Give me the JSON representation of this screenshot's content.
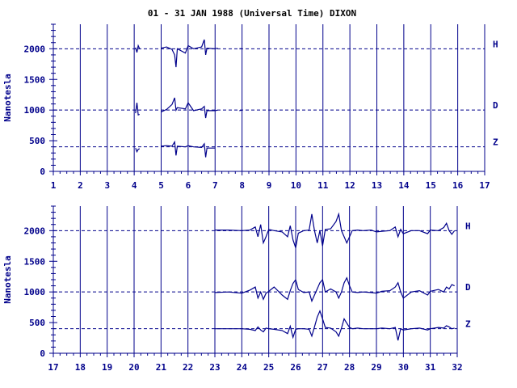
{
  "colors": {
    "ink": "#00008b",
    "trace": "#00008b",
    "background": "#ffffff"
  },
  "title": "01 - 31 JAN 1988 (Universal Time) DIXON",
  "chart_data": [
    {
      "type": "line",
      "ylabel": "Nanotesla",
      "xlim": [
        1,
        17
      ],
      "ylim": [
        0,
        2400
      ],
      "x_ticks": [
        "1",
        "2",
        "3",
        "4",
        "5",
        "6",
        "7",
        "8",
        "9",
        "10",
        "11",
        "12",
        "13",
        "14",
        "15",
        "16",
        "17"
      ],
      "y_ticks": [
        "0",
        "500",
        "1000",
        "1500",
        "2000"
      ],
      "baselines": [
        {
          "name": "H",
          "value": 2000
        },
        {
          "name": "D",
          "value": 1000
        },
        {
          "name": "Z",
          "value": 400
        }
      ],
      "series": [
        {
          "name": "H",
          "points": [
            [
              4.05,
              2020
            ],
            [
              4.1,
              1940
            ],
            [
              4.15,
              2050
            ],
            [
              4.2,
              2000
            ],
            [
              5.0,
              2010
            ],
            [
              5.2,
              2030
            ],
            [
              5.4,
              1990
            ],
            [
              5.5,
              1900
            ],
            [
              5.55,
              1700
            ],
            [
              5.6,
              2000
            ],
            [
              5.9,
              1930
            ],
            [
              6.0,
              2050
            ],
            [
              6.2,
              2000
            ],
            [
              6.5,
              2030
            ],
            [
              6.6,
              2150
            ],
            [
              6.65,
              1900
            ],
            [
              6.7,
              2010
            ],
            [
              7.0,
              2000
            ],
            [
              7.1,
              2010
            ],
            [
              7.9,
              2000
            ],
            [
              8.0,
              2000
            ]
          ]
        },
        {
          "name": "D",
          "points": [
            [
              4.05,
              950
            ],
            [
              4.1,
              1120
            ],
            [
              4.15,
              920
            ],
            [
              4.2,
              930
            ],
            [
              5.0,
              970
            ],
            [
              5.2,
              1010
            ],
            [
              5.4,
              1090
            ],
            [
              5.5,
              1200
            ],
            [
              5.55,
              1000
            ],
            [
              5.6,
              1040
            ],
            [
              5.9,
              1020
            ],
            [
              6.0,
              1120
            ],
            [
              6.2,
              990
            ],
            [
              6.5,
              1020
            ],
            [
              6.6,
              1060
            ],
            [
              6.65,
              870
            ],
            [
              6.7,
              990
            ],
            [
              7.0,
              990
            ],
            [
              7.1,
              1000
            ],
            [
              7.9,
              990
            ],
            [
              8.0,
              1000
            ]
          ]
        },
        {
          "name": "Z",
          "points": [
            [
              4.05,
              380
            ],
            [
              4.1,
              320
            ],
            [
              4.15,
              360
            ],
            [
              4.2,
              370
            ],
            [
              5.0,
              410
            ],
            [
              5.2,
              420
            ],
            [
              5.4,
              410
            ],
            [
              5.5,
              480
            ],
            [
              5.55,
              260
            ],
            [
              5.6,
              410
            ],
            [
              5.9,
              400
            ],
            [
              6.0,
              420
            ],
            [
              6.2,
              400
            ],
            [
              6.5,
              390
            ],
            [
              6.6,
              450
            ],
            [
              6.65,
              230
            ],
            [
              6.7,
              380
            ],
            [
              7.0,
              380
            ]
          ]
        }
      ]
    },
    {
      "type": "line",
      "ylabel": "Nanotesla",
      "xlim": [
        17,
        32
      ],
      "ylim": [
        0,
        2400
      ],
      "x_ticks": [
        "17",
        "18",
        "19",
        "20",
        "21",
        "22",
        "23",
        "24",
        "25",
        "26",
        "27",
        "28",
        "29",
        "30",
        "31",
        "32"
      ],
      "y_ticks": [
        "0",
        "500",
        "1000",
        "1500",
        "2000"
      ],
      "baselines": [
        {
          "name": "H",
          "value": 2000
        },
        {
          "name": "D",
          "value": 1000
        },
        {
          "name": "Z",
          "value": 400
        }
      ],
      "series": [
        {
          "name": "H",
          "points": [
            [
              23.0,
              2010
            ],
            [
              23.5,
              2010
            ],
            [
              24.0,
              2000
            ],
            [
              24.3,
              2010
            ],
            [
              24.5,
              2060
            ],
            [
              24.6,
              1900
            ],
            [
              24.7,
              2100
            ],
            [
              24.8,
              1800
            ],
            [
              24.9,
              1900
            ],
            [
              25.0,
              2020
            ],
            [
              25.2,
              2000
            ],
            [
              25.5,
              1980
            ],
            [
              25.7,
              1900
            ],
            [
              25.8,
              2080
            ],
            [
              25.9,
              1850
            ],
            [
              26.0,
              1720
            ],
            [
              26.1,
              1960
            ],
            [
              26.3,
              2000
            ],
            [
              26.5,
              2010
            ],
            [
              26.6,
              2270
            ],
            [
              26.7,
              2000
            ],
            [
              26.8,
              1800
            ],
            [
              26.9,
              2000
            ],
            [
              27.0,
              1750
            ],
            [
              27.1,
              2020
            ],
            [
              27.3,
              2030
            ],
            [
              27.5,
              2150
            ],
            [
              27.6,
              2270
            ],
            [
              27.7,
              2000
            ],
            [
              27.8,
              1900
            ],
            [
              27.9,
              1800
            ],
            [
              28.0,
              1900
            ],
            [
              28.1,
              2000
            ],
            [
              28.3,
              2010
            ],
            [
              28.5,
              2000
            ],
            [
              28.8,
              2010
            ],
            [
              29.0,
              1980
            ],
            [
              29.2,
              1990
            ],
            [
              29.5,
              2000
            ],
            [
              29.7,
              2060
            ],
            [
              29.8,
              1900
            ],
            [
              29.9,
              2020
            ],
            [
              30.0,
              1950
            ],
            [
              30.3,
              2000
            ],
            [
              30.6,
              2000
            ],
            [
              30.9,
              1950
            ],
            [
              31.0,
              2010
            ],
            [
              31.3,
              2000
            ],
            [
              31.5,
              2050
            ],
            [
              31.6,
              2120
            ],
            [
              31.7,
              2000
            ],
            [
              31.8,
              1940
            ],
            [
              31.9,
              2000
            ]
          ]
        },
        {
          "name": "D",
          "points": [
            [
              23.0,
              990
            ],
            [
              23.5,
              1000
            ],
            [
              24.0,
              980
            ],
            [
              24.3,
              1030
            ],
            [
              24.5,
              1080
            ],
            [
              24.6,
              900
            ],
            [
              24.7,
              1000
            ],
            [
              24.8,
              880
            ],
            [
              24.9,
              980
            ],
            [
              25.0,
              1010
            ],
            [
              25.2,
              1080
            ],
            [
              25.5,
              950
            ],
            [
              25.7,
              880
            ],
            [
              25.8,
              1020
            ],
            [
              25.9,
              1140
            ],
            [
              26.0,
              1200
            ],
            [
              26.1,
              1040
            ],
            [
              26.3,
              990
            ],
            [
              26.5,
              1000
            ],
            [
              26.6,
              850
            ],
            [
              26.7,
              950
            ],
            [
              26.8,
              1050
            ],
            [
              26.9,
              1150
            ],
            [
              27.0,
              1200
            ],
            [
              27.1,
              1000
            ],
            [
              27.3,
              1050
            ],
            [
              27.5,
              1000
            ],
            [
              27.6,
              900
            ],
            [
              27.7,
              1000
            ],
            [
              27.8,
              1150
            ],
            [
              27.9,
              1230
            ],
            [
              28.0,
              1100
            ],
            [
              28.1,
              1000
            ],
            [
              28.3,
              990
            ],
            [
              28.5,
              1000
            ],
            [
              28.8,
              990
            ],
            [
              29.0,
              980
            ],
            [
              29.2,
              1010
            ],
            [
              29.5,
              1020
            ],
            [
              29.7,
              1080
            ],
            [
              29.8,
              1150
            ],
            [
              29.9,
              1000
            ],
            [
              30.0,
              900
            ],
            [
              30.3,
              1000
            ],
            [
              30.6,
              1020
            ],
            [
              30.9,
              950
            ],
            [
              31.0,
              1010
            ],
            [
              31.3,
              1040
            ],
            [
              31.5,
              1000
            ],
            [
              31.6,
              1080
            ],
            [
              31.7,
              1050
            ],
            [
              31.8,
              1120
            ],
            [
              31.9,
              1100
            ]
          ]
        },
        {
          "name": "Z",
          "points": [
            [
              23.0,
              400
            ],
            [
              23.5,
              400
            ],
            [
              24.0,
              400
            ],
            [
              24.3,
              390
            ],
            [
              24.5,
              370
            ],
            [
              24.6,
              430
            ],
            [
              24.7,
              380
            ],
            [
              24.8,
              350
            ],
            [
              24.9,
              410
            ],
            [
              25.0,
              400
            ],
            [
              25.2,
              390
            ],
            [
              25.5,
              370
            ],
            [
              25.7,
              320
            ],
            [
              25.8,
              440
            ],
            [
              25.9,
              260
            ],
            [
              26.0,
              390
            ],
            [
              26.1,
              400
            ],
            [
              26.3,
              400
            ],
            [
              26.5,
              390
            ],
            [
              26.6,
              280
            ],
            [
              26.7,
              430
            ],
            [
              26.8,
              590
            ],
            [
              26.9,
              690
            ],
            [
              27.0,
              560
            ],
            [
              27.1,
              420
            ],
            [
              27.3,
              410
            ],
            [
              27.5,
              350
            ],
            [
              27.6,
              280
            ],
            [
              27.7,
              410
            ],
            [
              27.8,
              560
            ],
            [
              27.9,
              490
            ],
            [
              28.0,
              420
            ],
            [
              28.1,
              400
            ],
            [
              28.3,
              410
            ],
            [
              28.5,
              400
            ],
            [
              28.8,
              400
            ],
            [
              29.0,
              400
            ],
            [
              29.2,
              410
            ],
            [
              29.5,
              400
            ],
            [
              29.7,
              420
            ],
            [
              29.8,
              210
            ],
            [
              29.9,
              400
            ],
            [
              30.0,
              380
            ],
            [
              30.3,
              400
            ],
            [
              30.6,
              410
            ],
            [
              30.9,
              380
            ],
            [
              31.0,
              400
            ],
            [
              31.3,
              420
            ],
            [
              31.5,
              410
            ],
            [
              31.6,
              450
            ],
            [
              31.7,
              430
            ],
            [
              31.8,
              400
            ],
            [
              31.9,
              410
            ]
          ]
        }
      ]
    }
  ]
}
